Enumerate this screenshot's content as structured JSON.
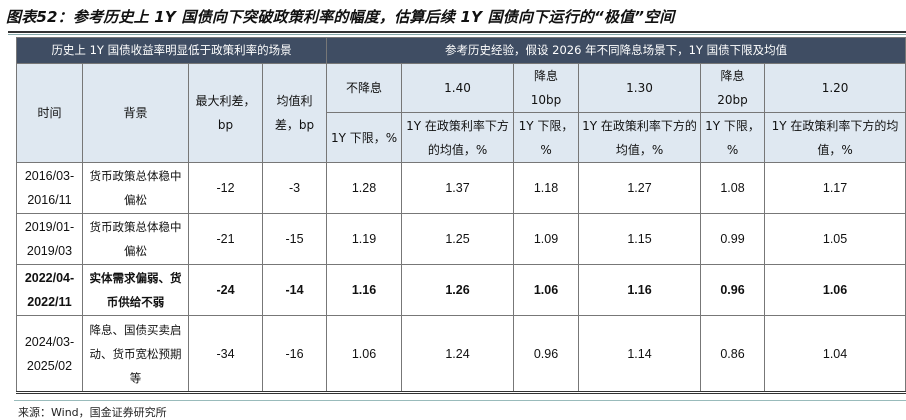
{
  "title": "图表52：参考历史上 1Y 国债向下突破政策利率的幅度，估算后续 1Y 国债向下运行的“极值”空间",
  "header": {
    "left_group": "历史上 1Y 国债收益率明显低于政策利率的场景",
    "right_group": "参考历史经验，假设 2026 年不同降息场景下，1Y 国债下限及均值",
    "col_time": "时间",
    "col_background": "背景",
    "col_max_spread": "最大利差，bp",
    "col_mean_spread": "均值利差，bp",
    "scenarios": [
      {
        "name": "不降息",
        "rate": "1.40"
      },
      {
        "name": "降息 10bp",
        "rate": "1.30"
      },
      {
        "name": "降息 20bp",
        "rate": "1.20"
      }
    ],
    "sub_lower": "1Y 下限，%",
    "sub_mean": "1Y 在政策利率下方的均值，%"
  },
  "rows": [
    {
      "time": "2016/03-2016/11",
      "background": "货币政策总体稳中偏松",
      "max": "-12",
      "mean": "-3",
      "v": [
        "1.28",
        "1.37",
        "1.18",
        "1.27",
        "1.08",
        "1.17"
      ]
    },
    {
      "time": "2019/01-2019/03",
      "background": "货币政策总体稳中偏松",
      "max": "-21",
      "mean": "-15",
      "v": [
        "1.19",
        "1.25",
        "1.09",
        "1.15",
        "0.99",
        "1.05"
      ]
    },
    {
      "time": "2022/04-2022/11",
      "background": "实体需求偏弱、货币供给不弱",
      "max": "-24",
      "mean": "-14",
      "v": [
        "1.16",
        "1.26",
        "1.06",
        "1.16",
        "0.96",
        "1.06"
      ]
    },
    {
      "time": "2024/03-2025/02",
      "background": "降息、国债买卖启动、货币宽松预期等",
      "max": "-34",
      "mean": "-16",
      "v": [
        "1.06",
        "1.24",
        "0.96",
        "1.14",
        "0.86",
        "1.04"
      ]
    }
  ],
  "source": "来源：Wind，国金证券研究所"
}
